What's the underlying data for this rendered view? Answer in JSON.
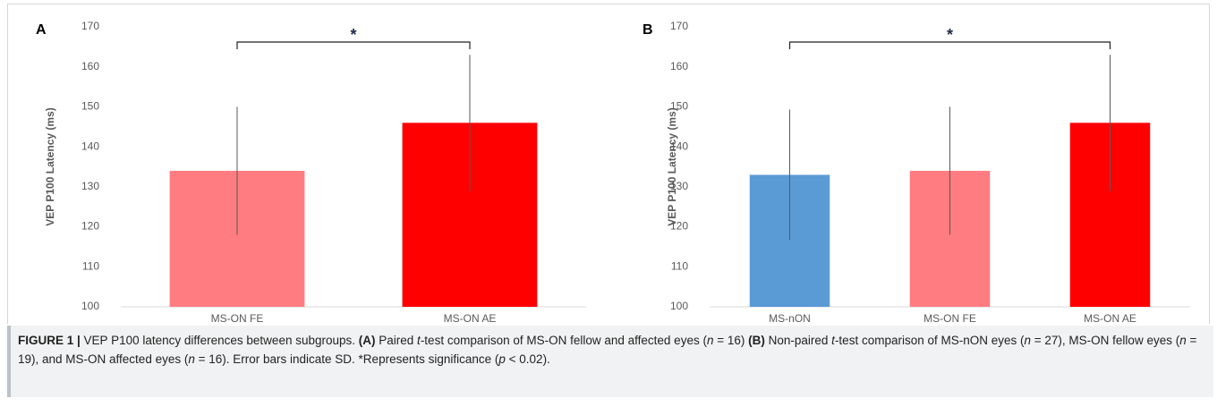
{
  "chart_data": [
    {
      "type": "bar",
      "panel": "A",
      "ylabel": "VEP P100 Latency (ms)",
      "categories": [
        "MS-ON FE",
        "MS-ON AE"
      ],
      "values": [
        134,
        146
      ],
      "errors": [
        16,
        17
      ],
      "colors": [
        "#ff7c80",
        "#ff0000"
      ],
      "ylim": [
        100,
        170
      ],
      "yticks": [
        100,
        110,
        120,
        130,
        140,
        150,
        160,
        170
      ],
      "grid": false,
      "significance": {
        "label": "*",
        "from": 0,
        "to": 1
      }
    },
    {
      "type": "bar",
      "panel": "B",
      "ylabel": "VEP P100 Latency (ms)",
      "categories": [
        "MS-nON",
        "MS-ON FE",
        "MS-ON AE"
      ],
      "values": [
        133,
        134,
        146
      ],
      "errors": [
        16.3,
        16,
        17
      ],
      "colors": [
        "#5b9bd5",
        "#ff7c80",
        "#ff0000"
      ],
      "ylim": [
        100,
        170
      ],
      "yticks": [
        100,
        110,
        120,
        130,
        140,
        150,
        160,
        170
      ],
      "grid": false,
      "significance": {
        "label": "*",
        "from": 0,
        "to": 2
      }
    }
  ],
  "caption": {
    "parts": [
      "FIGURE 1 |",
      " VEP P100 latency differences between subgroups. ",
      "(A)",
      " Paired ",
      "t",
      "-test comparison of MS-ON fellow and affected eyes (",
      "n",
      " = 16) ",
      "(B)",
      " Non-paired ",
      "t",
      "-test comparison of MS-nON eyes (",
      "n",
      " = 27), MS-ON fellow eyes (",
      "n",
      " =  19), and MS-ON affected eyes (",
      "n",
      " = 16). Error bars indicate SD. *Represents significance (",
      "p",
      " < 0.02)."
    ]
  }
}
